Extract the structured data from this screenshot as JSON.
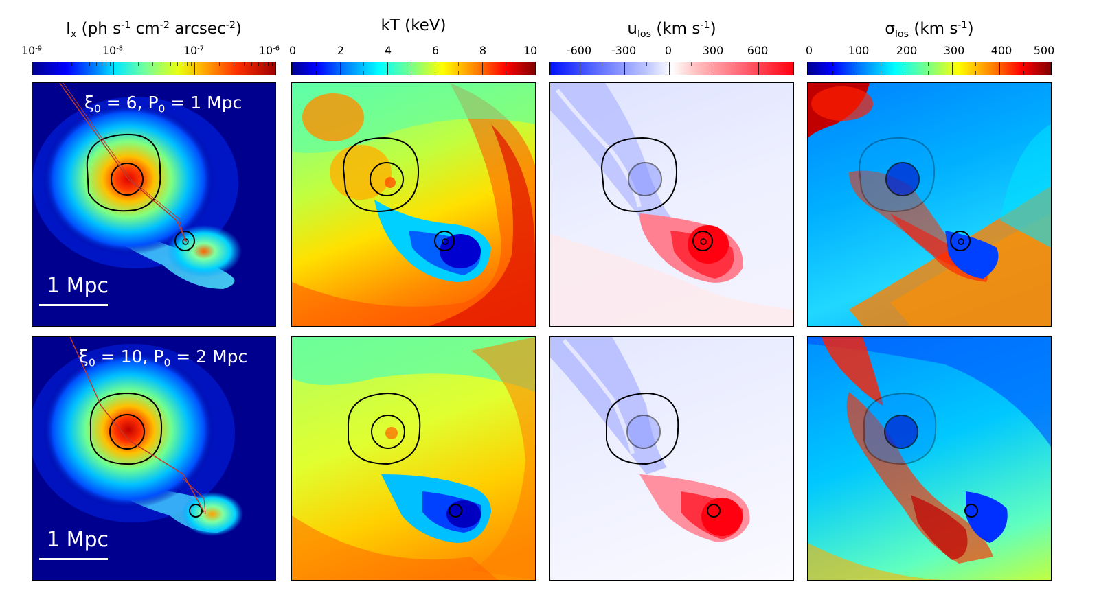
{
  "columns": [
    {
      "title_parts": [
        "I",
        "x",
        " (ph s",
        "-1",
        " cm",
        "-2",
        " arcsec",
        "-2",
        ")"
      ],
      "colorbar": {
        "ticks": [
          {
            "base": "10",
            "exp": "-9"
          },
          {
            "base": "10",
            "exp": "-8"
          },
          {
            "base": "10",
            "exp": "-7"
          },
          {
            "base": "10",
            "exp": "-6"
          }
        ],
        "scale": "log",
        "colormap": "jet"
      }
    },
    {
      "title": "kT (keV)",
      "colorbar": {
        "ticks": [
          {
            "label": "0"
          },
          {
            "label": "2"
          },
          {
            "label": "4"
          },
          {
            "label": "6"
          },
          {
            "label": "8"
          },
          {
            "label": "10"
          }
        ],
        "colormap": "jet"
      }
    },
    {
      "title_parts": [
        "u",
        "los",
        " (km s",
        "-1",
        ")"
      ],
      "colorbar": {
        "ticks": [
          {
            "label": "-600"
          },
          {
            "label": "-300"
          },
          {
            "label": "0"
          },
          {
            "label": "300"
          },
          {
            "label": "600"
          }
        ],
        "colormap": "blue-white-red"
      }
    },
    {
      "title_parts": [
        "σ",
        "los",
        " (km s",
        "-1",
        ")"
      ],
      "colorbar": {
        "ticks": [
          {
            "label": "0"
          },
          {
            "label": "100"
          },
          {
            "label": "200"
          },
          {
            "label": "300"
          },
          {
            "label": "400"
          },
          {
            "label": "500"
          }
        ],
        "colormap": "jet"
      }
    }
  ],
  "rows": [
    {
      "annotation": {
        "xi": "ξ",
        "xi_sub": "0",
        "xi_val": " = 6, P",
        "p_sub": "0",
        "p_val": " = 1 Mpc"
      },
      "scale_label": "1 Mpc"
    },
    {
      "annotation": {
        "xi": "ξ",
        "xi_sub": "0",
        "xi_val": " = 10, P",
        "p_sub": "0",
        "p_val": " = 2 Mpc"
      },
      "scale_label": "1 Mpc"
    }
  ],
  "colors": {
    "jet_navy": "#00008f",
    "jet_blue": "#0050ff",
    "jet_cyan": "#00e0ff",
    "jet_yellow": "#ffe000",
    "jet_red": "#e00000",
    "orbit_line": "#c0392b",
    "contour": "#000000",
    "annotation_text": "#ffffff"
  }
}
